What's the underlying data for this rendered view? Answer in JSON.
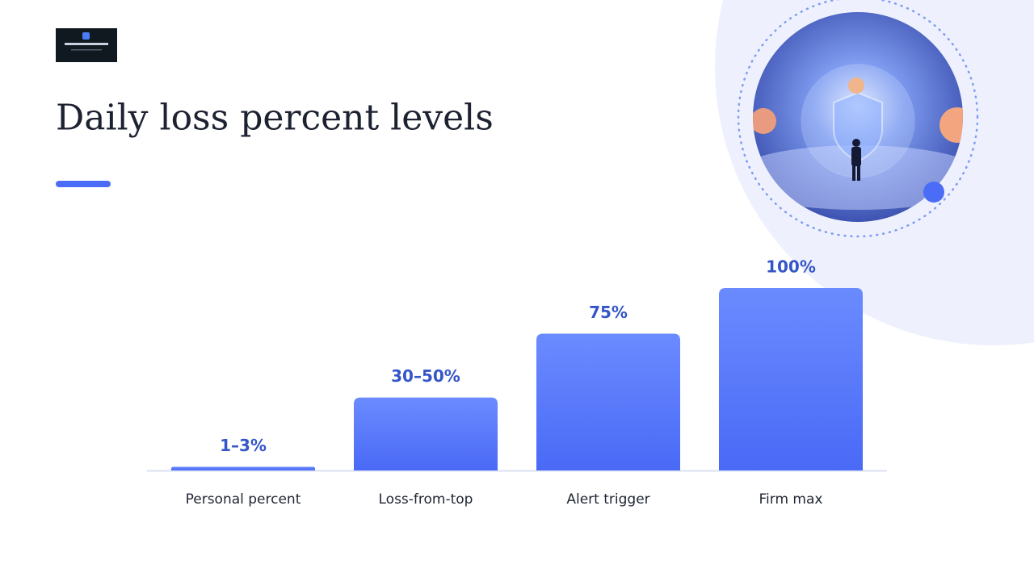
{
  "chart_data": {
    "type": "bar",
    "title": "Daily loss percent levels",
    "categories": [
      "Personal percent",
      "Loss-from-top",
      "Alert trigger",
      "Firm max"
    ],
    "values": [
      2,
      40,
      75,
      100
    ],
    "value_labels": [
      "1–3%",
      "30–50%",
      "75%",
      "100%"
    ],
    "color": "#5577fa",
    "ylim": [
      0,
      100
    ]
  }
}
